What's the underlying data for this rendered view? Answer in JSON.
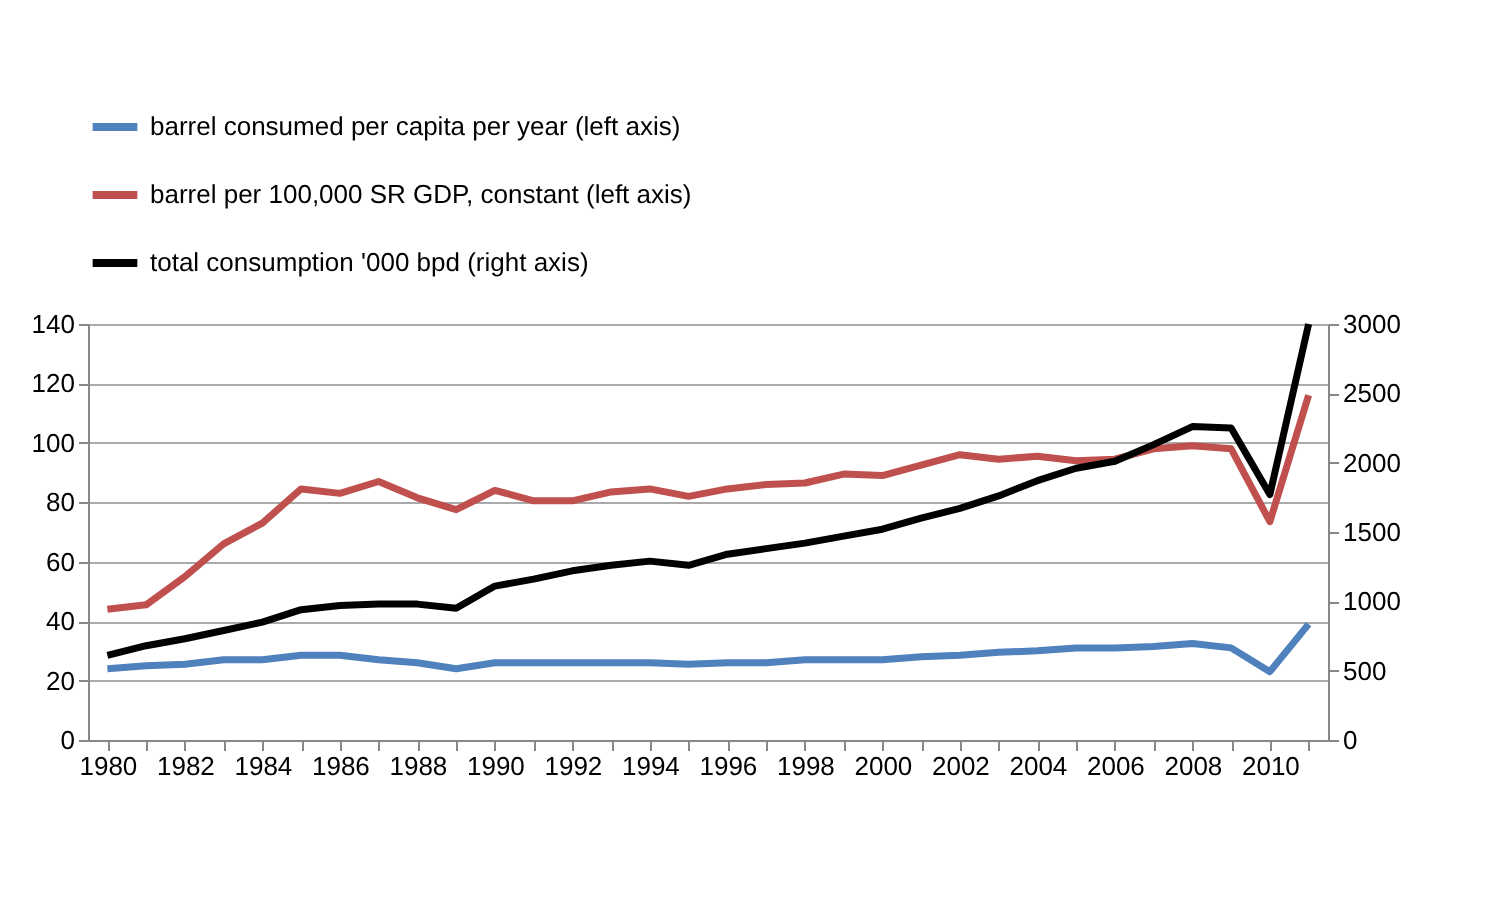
{
  "chart_data": {
    "type": "line",
    "categories": [
      "1980",
      null,
      "1982",
      null,
      "1984",
      null,
      "1986",
      null,
      "1988",
      null,
      "1990",
      null,
      "1992",
      null,
      "1994",
      null,
      "1996",
      null,
      "1998",
      null,
      "2000",
      null,
      "2002",
      null,
      "2004",
      null,
      "2006",
      null,
      "2008",
      null,
      "2010",
      null
    ],
    "series": [
      {
        "name": "barrel consumed per capita per year (left axis)",
        "color": "#4f81bd",
        "values": [
          24,
          25,
          25.5,
          27,
          27,
          28.5,
          28.5,
          27,
          26,
          24,
          26,
          26,
          26,
          26,
          26,
          25.5,
          26,
          26,
          27,
          27,
          27,
          28,
          28.5,
          29.5,
          30,
          31,
          31,
          31.5,
          32.5,
          31,
          23,
          39
        ]
      },
      {
        "name": "barrel per 100,000 SR GDP, constant (left axis)",
        "color": "#c0504d",
        "values": [
          44,
          45.5,
          55,
          66,
          73,
          84.5,
          83,
          87,
          81.5,
          77.5,
          84,
          80.5,
          80.5,
          83.5,
          84.5,
          82,
          84.5,
          86,
          86.5,
          89.5,
          89,
          92.5,
          96,
          94.5,
          95.5,
          94,
          94.5,
          98,
          99,
          98,
          73.5,
          116
        ]
      },
      {
        "name": "total consumption '000 bpd (right axis)",
        "color": "#000000",
        "axis": "y2",
        "values": [
          610,
          680,
          730,
          790,
          850,
          940,
          970,
          980,
          980,
          950,
          1110,
          1160,
          1220,
          1260,
          1290,
          1260,
          1340,
          1380,
          1420,
          1470,
          1520,
          1600,
          1670,
          1760,
          1870,
          1960,
          2010,
          2130,
          2260,
          2250,
          1770,
          3000
        ]
      }
    ],
    "ylim": [
      0,
      140
    ],
    "yticks": [
      0,
      20,
      40,
      60,
      80,
      100,
      120,
      140
    ],
    "y2lim": [
      0,
      3000
    ],
    "y2ticks": [
      0,
      500,
      1000,
      1500,
      2000,
      2500,
      3000
    ],
    "grid": "y",
    "legend": "top",
    "line_style": "solid",
    "marker": "none"
  }
}
